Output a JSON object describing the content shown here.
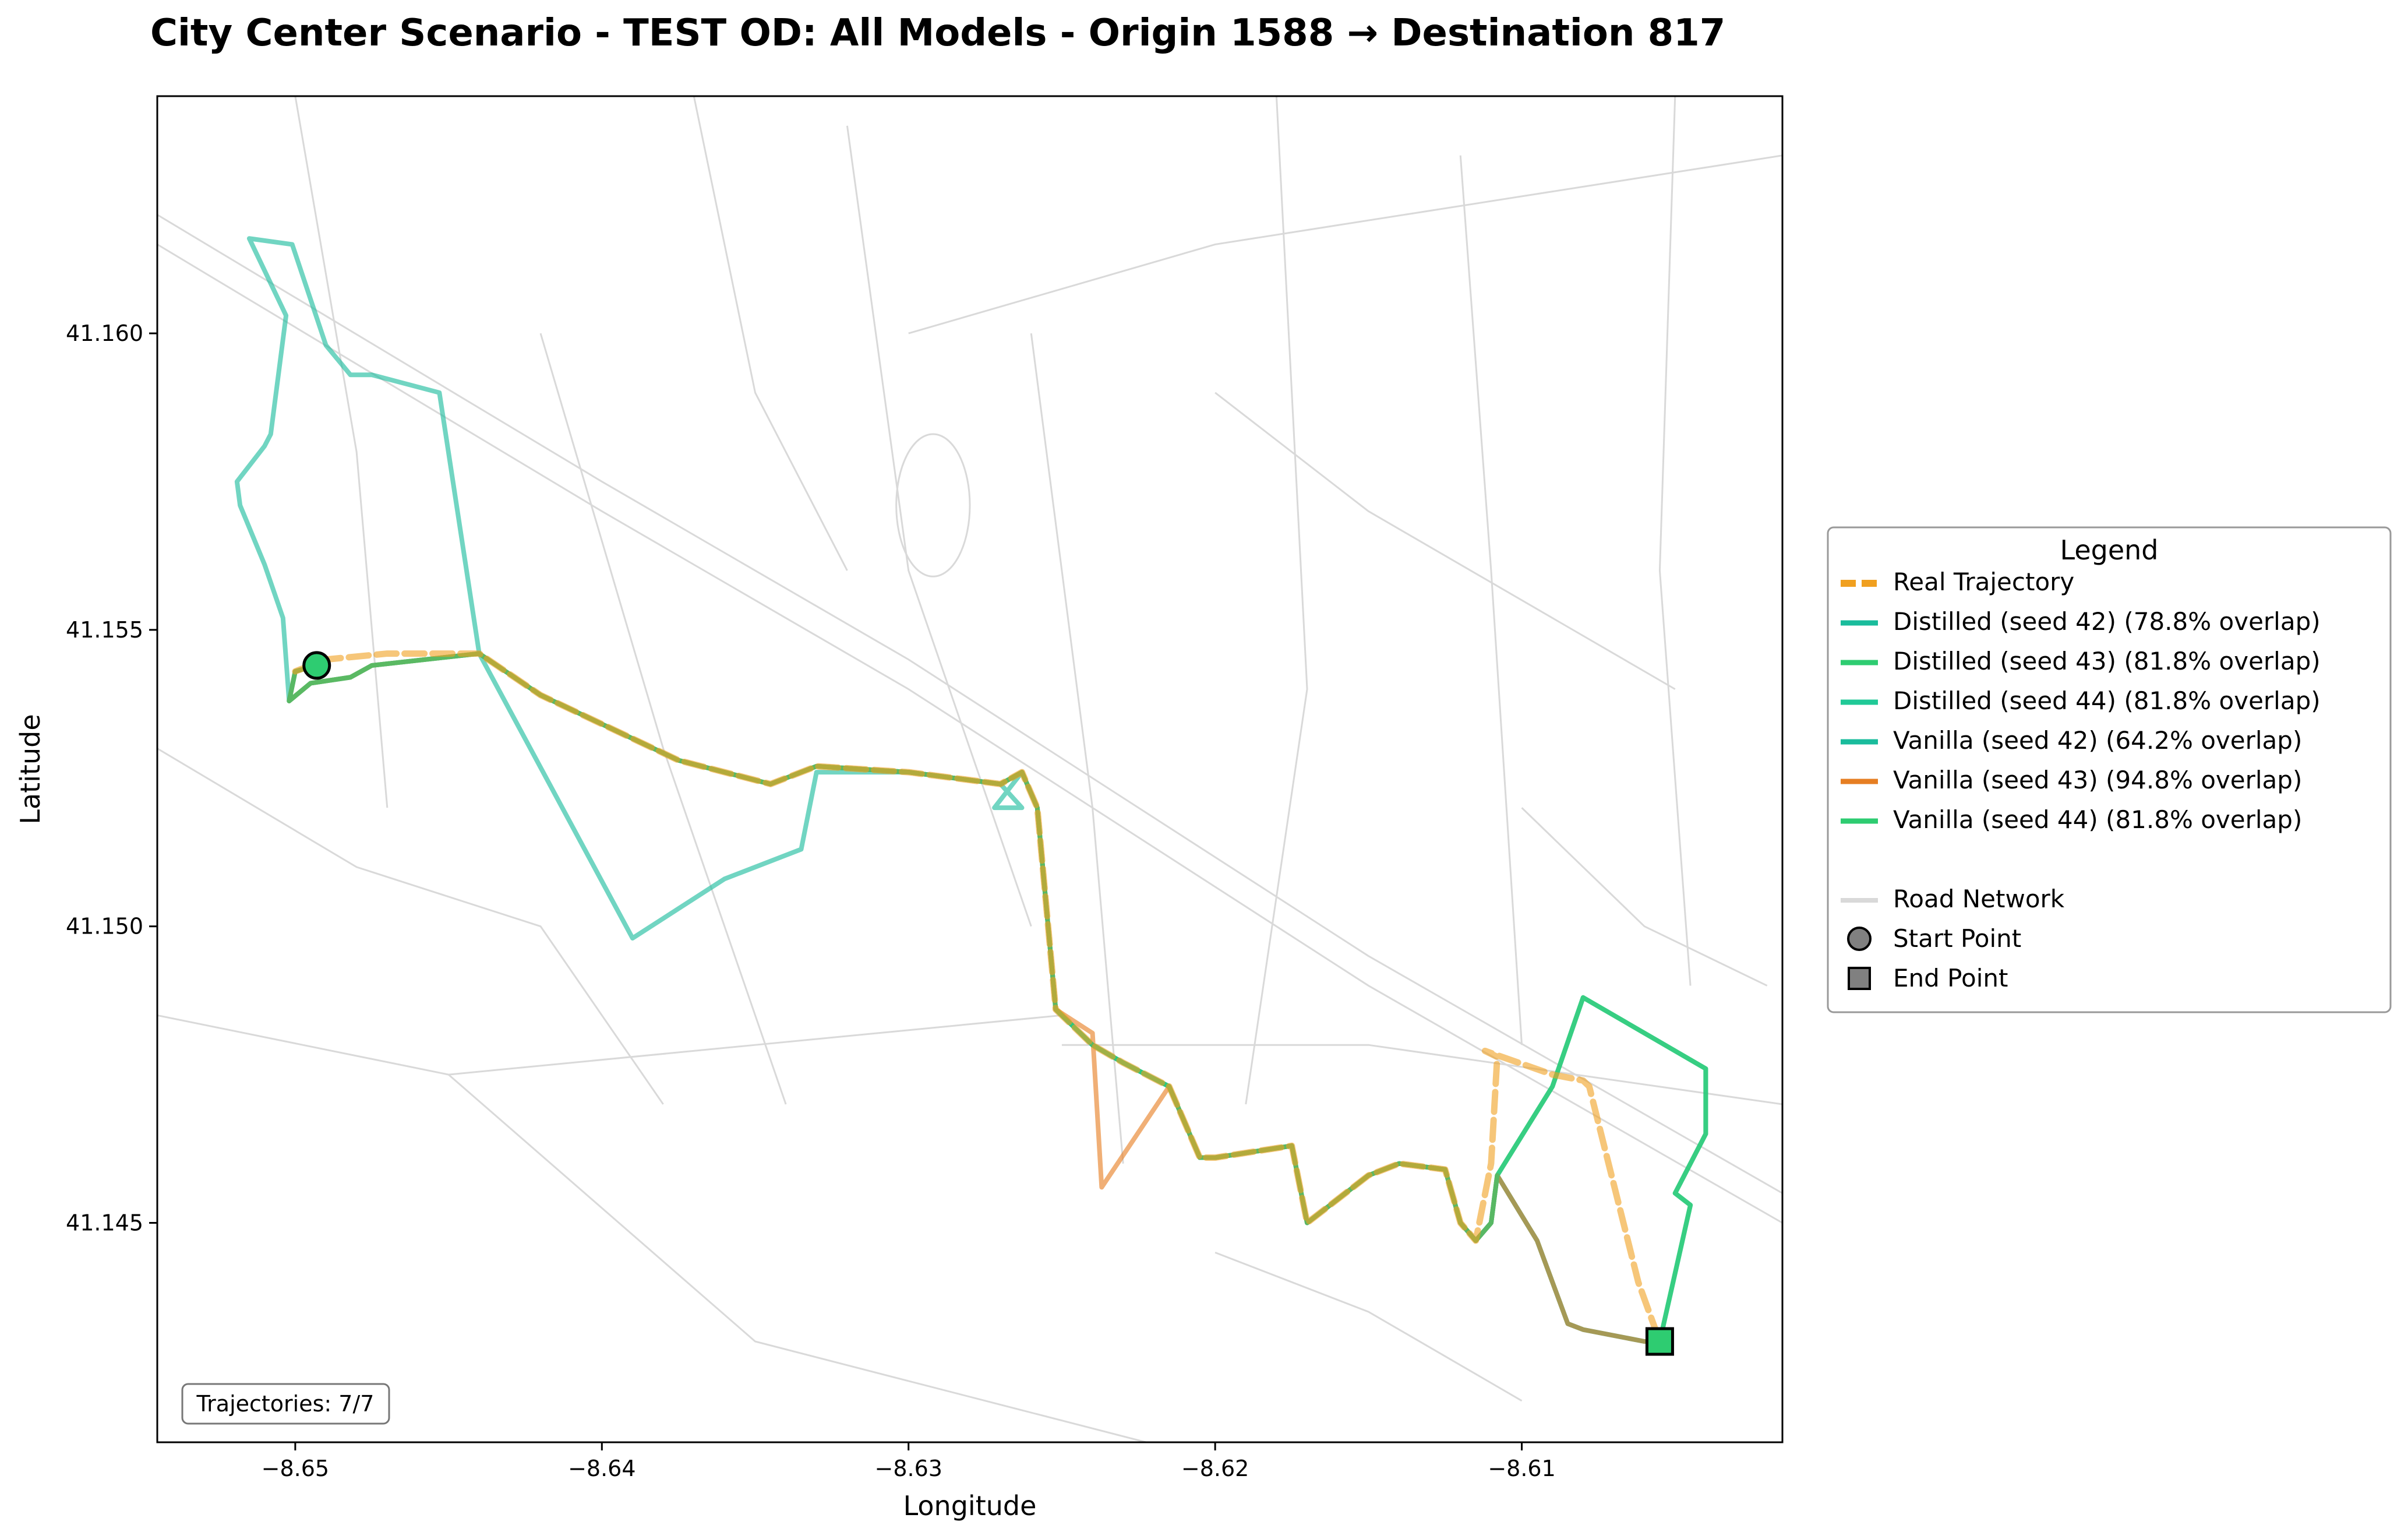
{
  "chart_data": {
    "type": "line",
    "title": "City Center Scenario - TEST OD: All Models - Origin 1588 → Destination 817",
    "xlabel": "Longitude",
    "ylabel": "Latitude",
    "xlim": [
      -8.6545,
      -8.6015
    ],
    "ylim": [
      41.1413,
      41.164
    ],
    "x_ticks": [
      -8.65,
      -8.64,
      -8.63,
      -8.62,
      -8.61
    ],
    "x_tick_labels": [
      "−8.65",
      "−8.64",
      "−8.63",
      "−8.62",
      "−8.61"
    ],
    "y_ticks": [
      41.145,
      41.15,
      41.155,
      41.16
    ],
    "y_tick_labels": [
      "41.145",
      "41.150",
      "41.155",
      "41.160"
    ],
    "grid": false,
    "legend_placement": "outside-right",
    "legend_title": "Legend",
    "annotation": "Trajectories: 7/7",
    "start_point": {
      "label": "Start Point",
      "x": -8.6493,
      "y": 41.1544
    },
    "end_point": {
      "label": "End Point",
      "x": -8.6055,
      "y": 41.143
    },
    "road_network": {
      "label": "Road Network",
      "color": "#d9d9d9",
      "segments": [
        [
          [
            -8.6545,
            41.162
          ],
          [
            -8.64,
            41.1575
          ],
          [
            -8.63,
            41.1545
          ],
          [
            -8.615,
            41.1495
          ],
          [
            -8.6015,
            41.1455
          ]
        ],
        [
          [
            -8.6545,
            41.1615
          ],
          [
            -8.64,
            41.157
          ],
          [
            -8.63,
            41.154
          ],
          [
            -8.615,
            41.149
          ],
          [
            -8.6015,
            41.145
          ]
        ],
        [
          [
            -8.63,
            41.16
          ],
          [
            -8.62,
            41.1615
          ],
          [
            -8.6015,
            41.163
          ]
        ],
        [
          [
            -8.632,
            41.1635
          ],
          [
            -8.63,
            41.156
          ],
          [
            -8.626,
            41.15
          ]
        ],
        [
          [
            -8.642,
            41.16
          ],
          [
            -8.638,
            41.153
          ],
          [
            -8.634,
            41.147
          ]
        ],
        [
          [
            -8.6545,
            41.1485
          ],
          [
            -8.645,
            41.1475
          ],
          [
            -8.635,
            41.148
          ],
          [
            -8.625,
            41.1485
          ]
        ],
        [
          [
            -8.645,
            41.1475
          ],
          [
            -8.635,
            41.143
          ],
          [
            -8.62,
            41.141
          ]
        ],
        [
          [
            -8.625,
            41.148
          ],
          [
            -8.615,
            41.148
          ],
          [
            -8.6015,
            41.147
          ]
        ],
        [
          [
            -8.618,
            41.164
          ],
          [
            -8.617,
            41.154
          ],
          [
            -8.619,
            41.147
          ]
        ],
        [
          [
            -8.612,
            41.163
          ],
          [
            -8.611,
            41.156
          ],
          [
            -8.61,
            41.148
          ]
        ],
        [
          [
            -8.605,
            41.164
          ],
          [
            -8.6055,
            41.156
          ],
          [
            -8.6045,
            41.149
          ]
        ],
        [
          [
            -8.6545,
            41.153
          ],
          [
            -8.648,
            41.151
          ],
          [
            -8.642,
            41.15
          ],
          [
            -8.638,
            41.147
          ]
        ],
        [
          [
            -8.626,
            41.16
          ],
          [
            -8.624,
            41.152
          ],
          [
            -8.623,
            41.146
          ]
        ],
        [
          [
            -8.62,
            41.1445
          ],
          [
            -8.615,
            41.1435
          ],
          [
            -8.61,
            41.142
          ]
        ],
        [
          [
            -8.637,
            41.164
          ],
          [
            -8.635,
            41.159
          ],
          [
            -8.632,
            41.156
          ]
        ],
        [
          [
            -8.61,
            41.152
          ],
          [
            -8.606,
            41.15
          ],
          [
            -8.602,
            41.149
          ]
        ],
        [
          [
            -8.65,
            41.164
          ],
          [
            -8.648,
            41.158
          ],
          [
            -8.647,
            41.152
          ]
        ],
        [
          [
            -8.62,
            41.159
          ],
          [
            -8.615,
            41.157
          ],
          [
            -8.61,
            41.1555
          ],
          [
            -8.605,
            41.154
          ]
        ]
      ],
      "roundabout": {
        "x": -8.6292,
        "y": 41.1571,
        "rx": 0.0012,
        "ry": 0.0012
      }
    },
    "series": [
      {
        "name": "Real Trajectory",
        "color": "#f0a020",
        "dashed": true,
        "x": [
          -8.65,
          -8.649,
          -8.647,
          -8.644,
          -8.642,
          -8.6375,
          -8.6345,
          -8.633,
          -8.63,
          -8.627,
          -8.6263,
          -8.6258,
          -8.6252,
          -8.624,
          -8.623,
          -8.6215,
          -8.6205,
          -8.62,
          -8.6175,
          -8.617,
          -8.615,
          -8.614,
          -8.6125,
          -8.612,
          -8.6115,
          -8.611,
          -8.6108,
          -8.6112,
          -8.609,
          -8.608,
          -8.6078,
          -8.6062,
          -8.6055
        ],
        "y": [
          41.1543,
          41.1545,
          41.1546,
          41.1546,
          41.1539,
          41.1528,
          41.1524,
          41.1527,
          41.1526,
          41.1524,
          41.1526,
          41.152,
          41.1486,
          41.148,
          41.1477,
          41.1473,
          41.1461,
          41.1461,
          41.1463,
          41.145,
          41.1458,
          41.146,
          41.1459,
          41.145,
          41.1447,
          41.146,
          41.1478,
          41.1479,
          41.1475,
          41.1474,
          41.1473,
          41.144,
          41.143
        ]
      },
      {
        "name": "Distilled (seed 42) (78.8% overlap)",
        "color": "#1abc9c",
        "x": [
          -8.6493,
          -8.65,
          -8.6502,
          -8.6495,
          -8.6482,
          -8.6475,
          -8.644,
          -8.642,
          -8.6375,
          -8.6345,
          -8.633,
          -8.63,
          -8.627,
          -8.6263,
          -8.6258,
          -8.6252,
          -8.624,
          -8.623,
          -8.6215,
          -8.6205,
          -8.62,
          -8.6175,
          -8.617,
          -8.615,
          -8.614,
          -8.6125,
          -8.612,
          -8.6115,
          -8.611,
          -8.6108,
          -8.6095,
          -8.6085,
          -8.608,
          -8.606,
          -8.6055
        ],
        "y": [
          41.1544,
          41.1543,
          41.1538,
          41.1541,
          41.1542,
          41.1544,
          41.1546,
          41.1539,
          41.1528,
          41.1524,
          41.1527,
          41.1526,
          41.1524,
          41.1526,
          41.152,
          41.1486,
          41.148,
          41.1477,
          41.1473,
          41.1461,
          41.1461,
          41.1463,
          41.145,
          41.1458,
          41.146,
          41.1459,
          41.145,
          41.1447,
          41.145,
          41.1458,
          41.1447,
          41.1433,
          41.1432,
          41.143,
          41.143
        ]
      },
      {
        "name": "Distilled (seed 43) (81.8% overlap)",
        "color": "#2ecc71",
        "x": [
          -8.6493,
          -8.65,
          -8.6502,
          -8.6495,
          -8.6482,
          -8.6475,
          -8.644,
          -8.642,
          -8.6375,
          -8.6345,
          -8.633,
          -8.63,
          -8.627,
          -8.6263,
          -8.6258,
          -8.6252,
          -8.624,
          -8.623,
          -8.6215,
          -8.6205,
          -8.62,
          -8.6175,
          -8.617,
          -8.615,
          -8.614,
          -8.6125,
          -8.612,
          -8.6115,
          -8.611,
          -8.6108,
          -8.609,
          -8.608,
          -8.604,
          -8.604,
          -8.605,
          -8.6045,
          -8.6055
        ],
        "y": [
          41.1544,
          41.1543,
          41.1538,
          41.1541,
          41.1542,
          41.1544,
          41.1546,
          41.1539,
          41.1528,
          41.1524,
          41.1527,
          41.1526,
          41.1524,
          41.1526,
          41.152,
          41.1486,
          41.148,
          41.1477,
          41.1473,
          41.1461,
          41.1461,
          41.1463,
          41.145,
          41.1458,
          41.146,
          41.1459,
          41.145,
          41.1447,
          41.145,
          41.1458,
          41.1473,
          41.1488,
          41.1476,
          41.1465,
          41.1455,
          41.1453,
          41.143
        ]
      },
      {
        "name": "Distilled (seed 44) (81.8% overlap)",
        "color": "#20c997",
        "x": [
          -8.6493,
          -8.65,
          -8.6502,
          -8.6495,
          -8.6482,
          -8.6475,
          -8.644,
          -8.642,
          -8.6375,
          -8.6345,
          -8.633,
          -8.63,
          -8.627,
          -8.6263,
          -8.6258,
          -8.6252,
          -8.624,
          -8.623,
          -8.6215,
          -8.6205,
          -8.62,
          -8.6175,
          -8.617,
          -8.615,
          -8.614,
          -8.6125,
          -8.612,
          -8.6115,
          -8.611,
          -8.6108,
          -8.609,
          -8.608,
          -8.604,
          -8.604,
          -8.605,
          -8.6045,
          -8.6055
        ],
        "y": [
          41.1544,
          41.1543,
          41.1538,
          41.1541,
          41.1542,
          41.1544,
          41.1546,
          41.1539,
          41.1528,
          41.1524,
          41.1527,
          41.1526,
          41.1524,
          41.1526,
          41.152,
          41.1486,
          41.148,
          41.1477,
          41.1473,
          41.1461,
          41.1461,
          41.1463,
          41.145,
          41.1458,
          41.146,
          41.1459,
          41.145,
          41.1447,
          41.145,
          41.1458,
          41.1473,
          41.1488,
          41.1476,
          41.1465,
          41.1455,
          41.1453,
          41.143
        ]
      },
      {
        "name": "Vanilla (seed 42) (64.2% overlap)",
        "color": "#1abc9c",
        "x": [
          -8.6493,
          -8.65,
          -8.6502,
          -8.6504,
          -8.651,
          -8.6518,
          -8.6519,
          -8.651,
          -8.6508,
          -8.6503,
          -8.6515,
          -8.6501,
          -8.649,
          -8.6482,
          -8.6475,
          -8.6453,
          -8.644,
          -8.639,
          -8.636,
          -8.6335,
          -8.633,
          -8.63,
          -8.627,
          -8.6263,
          -8.6272,
          -8.6263,
          -8.6258,
          -8.6252,
          -8.624,
          -8.623,
          -8.6215,
          -8.6205,
          -8.62,
          -8.6175,
          -8.617,
          -8.615,
          -8.614,
          -8.6125,
          -8.612,
          -8.6115,
          -8.611,
          -8.6108,
          -8.6095,
          -8.6085,
          -8.608,
          -8.606,
          -8.6055
        ],
        "y": [
          41.1544,
          41.1543,
          41.1538,
          41.1552,
          41.1561,
          41.1571,
          41.1575,
          41.1581,
          41.1583,
          41.1603,
          41.1616,
          41.1615,
          41.1598,
          41.1593,
          41.1593,
          41.159,
          41.1546,
          41.1498,
          41.1508,
          41.1513,
          41.1526,
          41.1526,
          41.1524,
          41.152,
          41.152,
          41.1526,
          41.152,
          41.1486,
          41.148,
          41.1477,
          41.1473,
          41.1461,
          41.1461,
          41.1463,
          41.145,
          41.1458,
          41.146,
          41.1459,
          41.145,
          41.1447,
          41.145,
          41.1458,
          41.1447,
          41.1433,
          41.1432,
          41.143,
          41.143
        ]
      },
      {
        "name": "Vanilla (seed 43) (94.8% overlap)",
        "color": "#e67e22",
        "x": [
          -8.6493,
          -8.65,
          -8.6502,
          -8.6495,
          -8.6482,
          -8.6475,
          -8.644,
          -8.642,
          -8.6375,
          -8.6345,
          -8.633,
          -8.63,
          -8.627,
          -8.6263,
          -8.6258,
          -8.6252,
          -8.624,
          -8.6237,
          -8.6215,
          -8.6205,
          -8.62,
          -8.6175,
          -8.617,
          -8.615,
          -8.614,
          -8.6125,
          -8.612,
          -8.6115,
          -8.611,
          -8.6108,
          -8.6095,
          -8.6085,
          -8.608,
          -8.606,
          -8.6055
        ],
        "y": [
          41.1544,
          41.1543,
          41.1538,
          41.1541,
          41.1542,
          41.1544,
          41.1546,
          41.1539,
          41.1528,
          41.1524,
          41.1527,
          41.1526,
          41.1524,
          41.1526,
          41.152,
          41.1486,
          41.1482,
          41.1456,
          41.1473,
          41.1461,
          41.1461,
          41.1463,
          41.145,
          41.1458,
          41.146,
          41.1459,
          41.145,
          41.1447,
          41.145,
          41.1458,
          41.1447,
          41.1433,
          41.1432,
          41.143,
          41.143
        ]
      },
      {
        "name": "Vanilla (seed 44) (81.8% overlap)",
        "color": "#2ecc71",
        "x": [
          -8.6493,
          -8.65,
          -8.6502,
          -8.6495,
          -8.6482,
          -8.6475,
          -8.644,
          -8.642,
          -8.6375,
          -8.6345,
          -8.633,
          -8.63,
          -8.627,
          -8.6263,
          -8.6258,
          -8.6252,
          -8.624,
          -8.623,
          -8.6215,
          -8.6205,
          -8.62,
          -8.6175,
          -8.617,
          -8.615,
          -8.614,
          -8.6125,
          -8.612,
          -8.6115,
          -8.611,
          -8.6108,
          -8.609,
          -8.608,
          -8.604,
          -8.604,
          -8.605,
          -8.6045,
          -8.6055
        ],
        "y": [
          41.1544,
          41.1543,
          41.1538,
          41.1541,
          41.1542,
          41.1544,
          41.1546,
          41.1539,
          41.1528,
          41.1524,
          41.1527,
          41.1526,
          41.1524,
          41.1526,
          41.152,
          41.1486,
          41.148,
          41.1477,
          41.1473,
          41.1461,
          41.1461,
          41.1463,
          41.145,
          41.1458,
          41.146,
          41.1459,
          41.145,
          41.1447,
          41.145,
          41.1458,
          41.1473,
          41.1488,
          41.1476,
          41.1465,
          41.1455,
          41.1453,
          41.143
        ]
      }
    ]
  }
}
